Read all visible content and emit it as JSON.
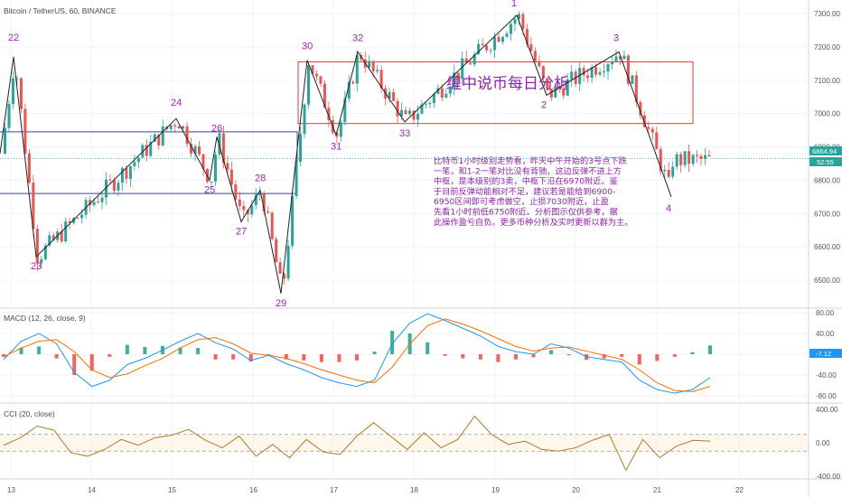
{
  "chart_data": [
    {
      "type": "candlestick",
      "title": "Bitcoin / TetherUS, 60, BINANCE",
      "colors": {
        "up": "#26a69a",
        "down": "#ef5350",
        "wave": "#222222",
        "box_pivot": "#e53935",
        "box_lower": "#3f3fa0",
        "label": "#9c27b0"
      },
      "x_axis_labels": [
        "13",
        "14",
        "15",
        "16",
        "17",
        "18",
        "19",
        "20",
        "21",
        "22"
      ],
      "y_axis": {
        "min": 6400,
        "max": 7350,
        "ticks": [
          "7300.00",
          "7200.00",
          "7100.00",
          "7000.00",
          "6900.00",
          "6800.00",
          "6700.00",
          "6600.00",
          "6500.00"
        ]
      },
      "last_price": "6864.94",
      "countdown": "52:55",
      "pivot_zone": {
        "low": 6970,
        "high": 7155
      },
      "lower_zone": {
        "low": 6760,
        "high": 6945
      },
      "wave_points": [
        {
          "label": "",
          "price": 6880
        },
        {
          "label": "22",
          "price": 7170
        },
        {
          "label": "23",
          "price": 6570
        },
        {
          "label": "24",
          "price": 6985
        },
        {
          "label": "25",
          "price": 6800
        },
        {
          "label": "26",
          "price": 6930
        },
        {
          "label": "27",
          "price": 6675
        },
        {
          "label": "28",
          "price": 6770
        },
        {
          "label": "29",
          "price": 6460
        },
        {
          "label": "30",
          "price": 7160
        },
        {
          "label": "31",
          "price": 6935
        },
        {
          "label": "32",
          "price": 7185
        },
        {
          "label": "33",
          "price": 6975
        },
        {
          "label": "1",
          "price": 7295
        },
        {
          "label": "2",
          "price": 7055
        },
        {
          "label": "3",
          "price": 7185
        },
        {
          "label": "4",
          "price": 6750
        }
      ],
      "annotation": "比特币1小时级别走势看，昨天中午开始的3号点下跌一笔，和1-2一笔对比没有背驰，这边反弹不进上方中枢，是本级别的3卖，中枢下沿在6970附近。鉴于目前反弹动能相对不足，建议若是能给到6900-6950区间即可考虑做空，止损7030附近，止盈先看1小时前低6750附近。分析图示仅供参考，据此操作盈亏自负。更多币种分析及实时更新以群为主。",
      "watermark": "缠中说币每日分析"
    },
    {
      "type": "macd",
      "title": "MACD (12, 26, close, 9)",
      "colors": {
        "macd": "#2196f3",
        "signal": "#ff6d00",
        "hist_pos": "#26a69a",
        "hist_neg": "#ef5350"
      },
      "y_axis": {
        "ticks": [
          "80.00",
          "40.00",
          "0.00",
          "-40.00",
          "-80.00"
        ]
      },
      "last_value": "-7.12",
      "macd": [
        -10,
        25,
        40,
        20,
        -35,
        -62,
        -50,
        -20,
        -8,
        8,
        25,
        40,
        22,
        10,
        -12,
        -2,
        -18,
        -30,
        -45,
        -55,
        -62,
        -50,
        20,
        60,
        78,
        65,
        50,
        35,
        15,
        5,
        0,
        20,
        12,
        -5,
        -10,
        -15,
        -50,
        -68,
        -75,
        -68,
        -45
      ],
      "signal": [
        -5,
        12,
        25,
        28,
        5,
        -30,
        -45,
        -38,
        -22,
        -8,
        12,
        28,
        32,
        20,
        2,
        -2,
        -8,
        -18,
        -30,
        -40,
        -50,
        -55,
        -25,
        20,
        55,
        68,
        58,
        45,
        30,
        15,
        6,
        12,
        14,
        6,
        -2,
        -10,
        -30,
        -55,
        -70,
        -72,
        -62
      ],
      "histogram": [
        -5,
        13,
        15,
        -8,
        -40,
        -32,
        -5,
        18,
        14,
        16,
        13,
        12,
        -10,
        -10,
        -14,
        0,
        -10,
        -12,
        -15,
        -15,
        -12,
        5,
        45,
        40,
        23,
        -3,
        -8,
        -10,
        -15,
        -10,
        -6,
        8,
        -2,
        -11,
        -8,
        -5,
        -20,
        -13,
        -5,
        4,
        17
      ]
    },
    {
      "type": "line",
      "title": "CCI (20, close)",
      "colors": {
        "line": "#a87e2b",
        "band": "#ff9800"
      },
      "y_axis": {
        "ticks": [
          "400.00",
          "0.00",
          "-400.00"
        ]
      },
      "bands": [
        -100,
        100
      ],
      "last_value": "0.00",
      "values": [
        -30,
        60,
        200,
        150,
        -120,
        -160,
        -80,
        40,
        -30,
        60,
        90,
        160,
        30,
        -60,
        80,
        -160,
        -20,
        -180,
        40,
        -110,
        -140,
        80,
        240,
        80,
        -80,
        120,
        -60,
        40,
        320,
        100,
        -20,
        20,
        -80,
        -100,
        -60,
        30,
        100,
        -330,
        40,
        -180,
        -40,
        30,
        20
      ]
    }
  ]
}
